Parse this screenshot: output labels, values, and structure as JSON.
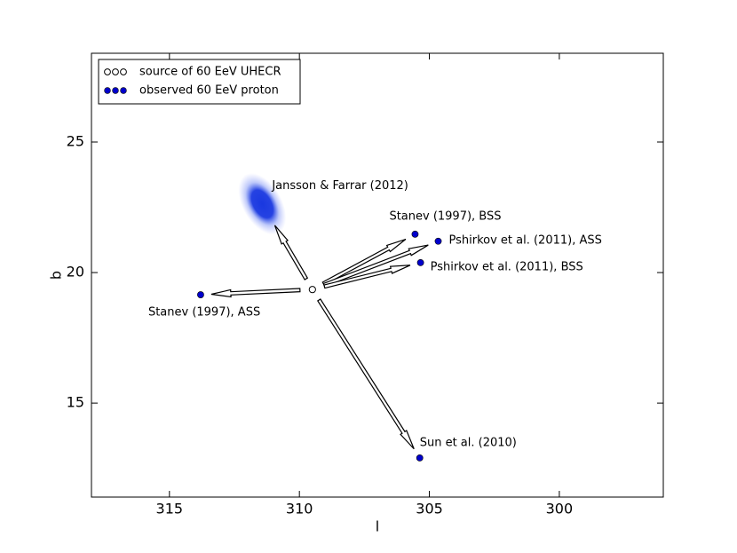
{
  "chart_data": {
    "type": "scatter",
    "xlabel": "l",
    "ylabel": "b",
    "xlim": [
      318,
      296
    ],
    "ylim": [
      11.4,
      28.4
    ],
    "xticks": [
      315,
      310,
      305,
      300
    ],
    "yticks": [
      15,
      20,
      25
    ],
    "legend": "upper left",
    "series": [
      {
        "name": "source of 60 EeV UHECR",
        "color": "#ffffff",
        "x": [
          309.5
        ],
        "values": [
          19.35
        ]
      },
      {
        "name": "observed 60 EeV proton",
        "color": "#0000cc",
        "x": [
          313.8,
          305.55,
          304.66,
          305.34,
          305.37
        ],
        "values": [
          19.15,
          21.47,
          21.2,
          20.38,
          12.9
        ],
        "labels": [
          "Stanev (1997), ASS",
          "Stanev (1997), BSS",
          "Pshirkov et al. (2011), ASS",
          "Pshirkov et al. (2011), BSS",
          "Sun et al. (2010)"
        ]
      }
    ],
    "annotations": [
      {
        "text": "Jansson & Farrar (2012)",
        "x": 311.43,
        "y": 22.63,
        "color": "#0022dd"
      }
    ]
  }
}
